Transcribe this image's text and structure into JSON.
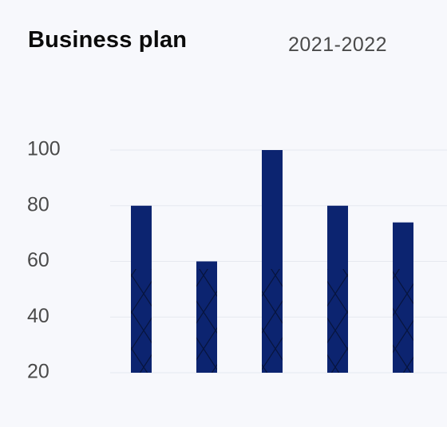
{
  "header": {
    "title": "Business plan",
    "period": "2021-2022"
  },
  "colors": {
    "bar": "#0c2470",
    "grid": "#e6e8ef",
    "axis_text": "#4a4a4a"
  },
  "chart_data": {
    "type": "bar",
    "title": "Business plan",
    "subtitle": "2021-2022",
    "categories": [
      "",
      "",
      "",
      "",
      ""
    ],
    "values": [
      80,
      60,
      100,
      80,
      74
    ],
    "ylim": [
      20,
      100
    ],
    "yticks": [
      20,
      40,
      60,
      80,
      100
    ],
    "grid": true,
    "pattern": "cross-hatch"
  }
}
